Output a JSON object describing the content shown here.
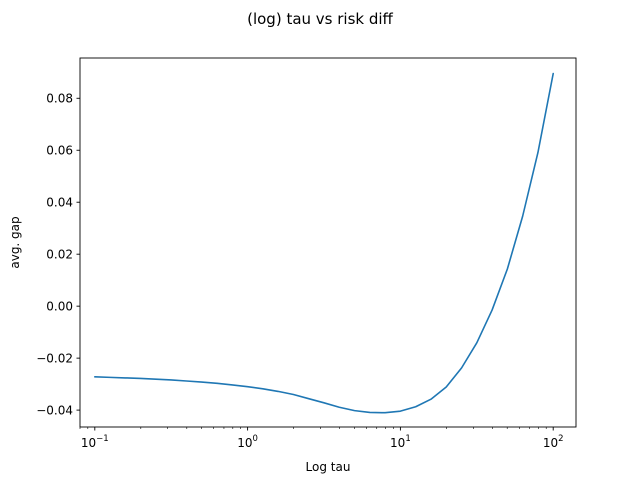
{
  "chart_data": {
    "type": "line",
    "title": "(log) tau vs risk diff",
    "xlabel": "Log tau",
    "ylabel": "avg. gap",
    "xscale": "log",
    "xlim": [
      0.08,
      141
    ],
    "ylim": [
      -0.0465,
      0.0955
    ],
    "grid": false,
    "legend": "none",
    "line_color": "#1f77b4",
    "x_ticks": [
      {
        "value": 0.1,
        "base": "10",
        "exp": "−1"
      },
      {
        "value": 1,
        "base": "10",
        "exp": "0"
      },
      {
        "value": 10,
        "base": "10",
        "exp": "1"
      },
      {
        "value": 100,
        "base": "10",
        "exp": "2"
      }
    ],
    "y_ticks": [
      {
        "value": -0.04,
        "label": "−0.04"
      },
      {
        "value": -0.02,
        "label": "−0.02"
      },
      {
        "value": 0.0,
        "label": "0.00"
      },
      {
        "value": 0.02,
        "label": "0.02"
      },
      {
        "value": 0.04,
        "label": "0.04"
      },
      {
        "value": 0.06,
        "label": "0.06"
      },
      {
        "value": 0.08,
        "label": "0.08"
      }
    ],
    "series": [
      {
        "x": [
          0.1,
          0.126,
          0.158,
          0.2,
          0.251,
          0.316,
          0.398,
          0.501,
          0.631,
          0.794,
          1.0,
          1.259,
          1.585,
          1.995,
          2.512,
          3.162,
          3.981,
          5.012,
          6.31,
          7.943,
          10.0,
          12.59,
          15.85,
          19.95,
          25.12,
          31.62,
          39.81,
          50.12,
          63.1,
          79.43,
          100.0
        ],
        "y": [
          -0.0272,
          -0.0274,
          -0.0276,
          -0.0278,
          -0.0281,
          -0.0284,
          -0.0288,
          -0.0292,
          -0.0297,
          -0.0303,
          -0.031,
          -0.0318,
          -0.0328,
          -0.034,
          -0.0356,
          -0.0372,
          -0.0389,
          -0.0402,
          -0.0409,
          -0.041,
          -0.0404,
          -0.0387,
          -0.0358,
          -0.0311,
          -0.0238,
          -0.0141,
          -0.0015,
          0.0143,
          0.0346,
          0.0591,
          0.0895
        ]
      }
    ]
  }
}
